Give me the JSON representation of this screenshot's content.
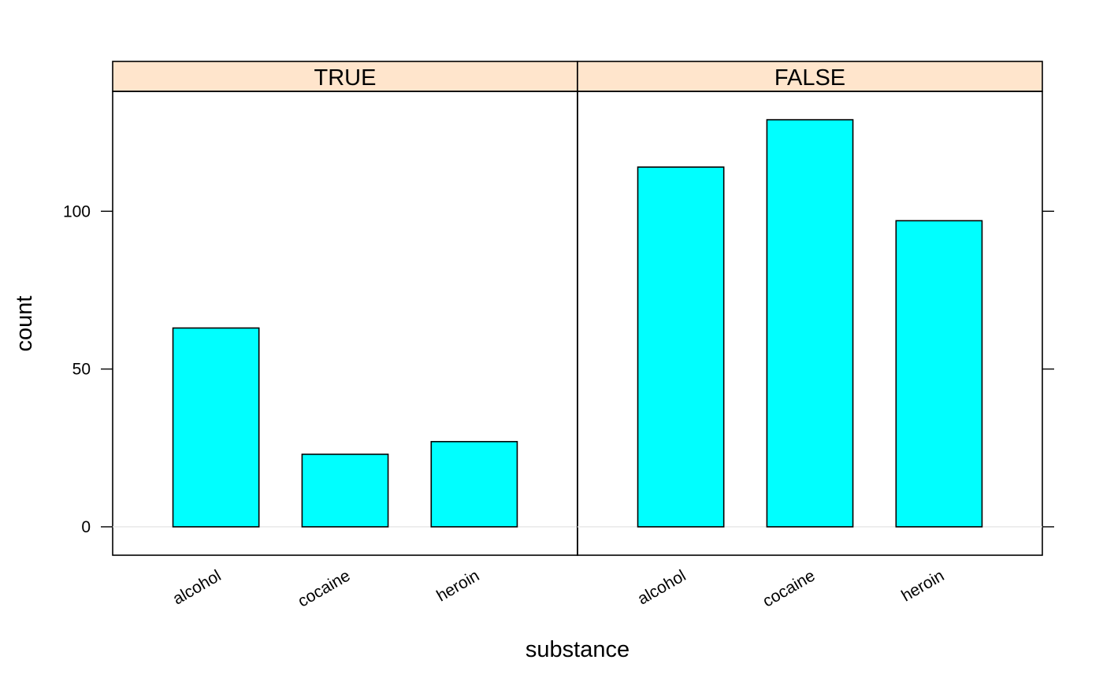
{
  "chart_data": {
    "type": "bar",
    "xlabel": "substance",
    "ylabel": "count",
    "categories": [
      "alcohol",
      "cocaine",
      "heroin"
    ],
    "ylim": [
      -9,
      138
    ],
    "yticks": [
      0,
      50,
      100
    ],
    "grid": false,
    "legend": "none",
    "panels": [
      {
        "name": "TRUE",
        "values": [
          63,
          23,
          27
        ]
      },
      {
        "name": "FALSE",
        "values": [
          114,
          129,
          97
        ]
      }
    ],
    "colors": {
      "bar_fill": "#00FFFF",
      "bar_stroke": "#000000",
      "strip_fill": "#FFE5CC",
      "baseline": "#E6E6E6",
      "frame": "#000000"
    }
  }
}
